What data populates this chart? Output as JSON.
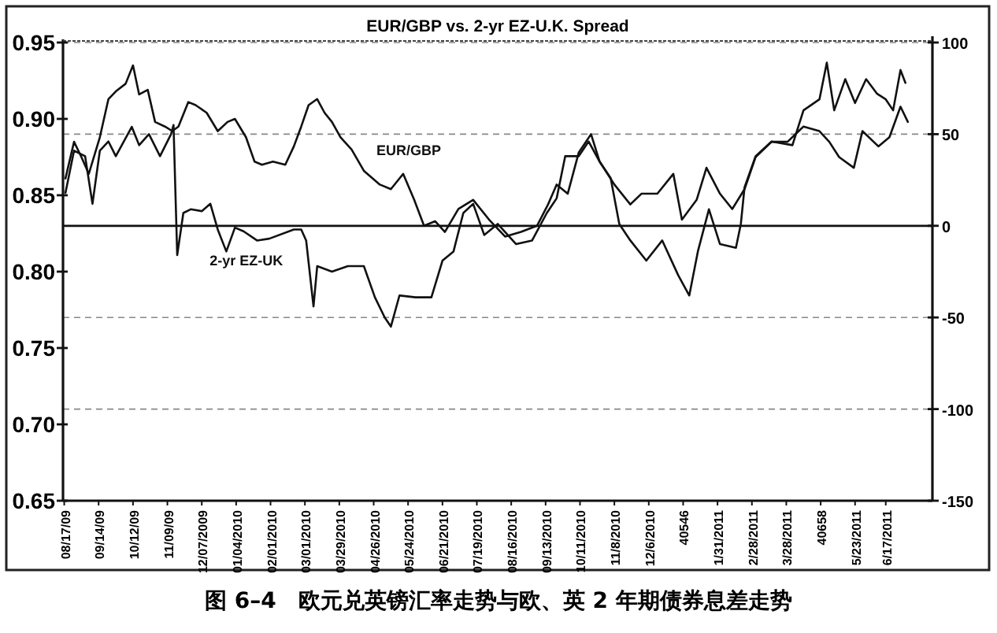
{
  "chart_data": {
    "type": "line",
    "title": "EUR/GBP vs. 2-yr EZ-U.K. Spread",
    "annotations": [
      "图 6–4　欧元兑英镑汇率走势与欧、英 2 年期债券息差走势"
    ],
    "xlim": [
      40041,
      40749
    ],
    "xticks": [
      {
        "value": 40042,
        "label": "08/17/09"
      },
      {
        "value": 40070,
        "label": "09/14/09"
      },
      {
        "value": 40098,
        "label": "10/12/09"
      },
      {
        "value": 40126,
        "label": "11/09/09"
      },
      {
        "value": 40154,
        "label": "12/07/2009"
      },
      {
        "value": 40182,
        "label": "01/04/2010"
      },
      {
        "value": 40210,
        "label": "02/01/2010"
      },
      {
        "value": 40238,
        "label": "03/01/2010"
      },
      {
        "value": 40266,
        "label": "03/29/2010"
      },
      {
        "value": 40294,
        "label": "04/26/2010"
      },
      {
        "value": 40322,
        "label": "05/24/2010"
      },
      {
        "value": 40350,
        "label": "06/21/2010"
      },
      {
        "value": 40378,
        "label": "07/19/2010"
      },
      {
        "value": 40406,
        "label": "08/16/2010"
      },
      {
        "value": 40434,
        "label": "09/13/2010"
      },
      {
        "value": 40462,
        "label": "10/11/2010"
      },
      {
        "value": 40490,
        "label": "11/8/2010"
      },
      {
        "value": 40518,
        "label": "12/6/2010"
      },
      40546,
      {
        "value": 40574,
        "label": "1/31/2011"
      },
      {
        "value": 40602,
        "label": "2/28/2011"
      },
      {
        "value": 40630,
        "label": "3/28/2011"
      },
      40658,
      {
        "value": 40686,
        "label": "5/23/2011"
      },
      {
        "value": 40711,
        "label": "6/17/2011"
      }
    ],
    "ylim": [
      0.65,
      0.95
    ],
    "yticks": [
      0.65,
      {
        "value": 0.7,
        "label": "0.70"
      },
      0.75,
      {
        "value": 0.8,
        "label": "0.80"
      },
      0.85,
      {
        "value": 0.9,
        "label": "0.90"
      },
      0.95
    ],
    "y2lim": [
      -150,
      100
    ],
    "y2ticks": [
      -150,
      -100,
      -50,
      0,
      50,
      100
    ],
    "grid": "y",
    "ref_lines": [
      {
        "axis": "y2",
        "value": 0
      }
    ],
    "series": [
      {
        "name": "EUR/GBP",
        "color": "#111111",
        "x": [
          40043,
          40050,
          40056,
          40062,
          40071,
          40078,
          40084,
          40092,
          40098,
          40103,
          40110,
          40116,
          40124,
          40130,
          40135,
          40143,
          40149,
          40158,
          40167,
          40175,
          40181,
          40190,
          40197,
          40203,
          40212,
          40222,
          40229,
          40235,
          40241,
          40248,
          40254,
          40260,
          40267,
          40276,
          40286,
          40299,
          40308,
          40318,
          40327,
          40335,
          40344,
          40352,
          40363,
          40375,
          40388,
          40401,
          40414,
          40427,
          40436,
          40443,
          40452,
          40461,
          40471,
          40478,
          40490,
          40503,
          40512,
          40525,
          40538,
          40545,
          40557,
          40565,
          40576,
          40586,
          40596,
          40605,
          40618,
          40631,
          40644,
          40657,
          40665,
          40673,
          40685,
          40692,
          40705,
          40714,
          40723,
          40729
        ],
        "values": [
          0.861,
          0.885,
          0.875,
          0.864,
          0.888,
          0.913,
          0.918,
          0.923,
          0.935,
          0.916,
          0.919,
          0.898,
          0.895,
          0.892,
          0.895,
          0.911,
          0.909,
          0.904,
          0.892,
          0.898,
          0.9,
          0.888,
          0.872,
          0.87,
          0.872,
          0.87,
          0.882,
          0.895,
          0.909,
          0.913,
          0.904,
          0.898,
          0.888,
          0.88,
          0.866,
          0.857,
          0.854,
          0.864,
          0.847,
          0.83,
          0.833,
          0.826,
          0.841,
          0.847,
          0.834,
          0.823,
          0.826,
          0.83,
          0.844,
          0.857,
          0.851,
          0.878,
          0.89,
          0.872,
          0.857,
          0.844,
          0.851,
          0.851,
          0.864,
          0.834,
          0.847,
          0.868,
          0.851,
          0.841,
          0.854,
          0.875,
          0.885,
          0.885,
          0.895,
          0.892,
          0.885,
          0.875,
          0.868,
          0.892,
          0.882,
          0.888,
          0.908,
          0.898
        ]
      },
      {
        "name": "2-yr EZ-UK",
        "color": "#111111",
        "axis": "y2",
        "x": [
          40043,
          40050,
          40059,
          40065,
          40071,
          40078,
          40084,
          40097,
          40103,
          40111,
          40120,
          40129,
          40131,
          40134,
          40139,
          40145,
          40154,
          40161,
          40167,
          40174,
          40181,
          40188,
          40199,
          40209,
          40229,
          40235,
          40239,
          40245,
          40248,
          40260,
          40273,
          40286,
          40295,
          40303,
          40308,
          40315,
          40328,
          40341,
          40350,
          40359,
          40367,
          40375,
          40384,
          40395,
          40410,
          40423,
          40435,
          40443,
          40450,
          40461,
          40469,
          40478,
          40487,
          40494,
          40503,
          40516,
          40529,
          40542,
          40551,
          40558,
          40567,
          40576,
          40589,
          40593,
          40596,
          40605,
          40618,
          40635,
          40644,
          40657,
          40663,
          40669,
          40678,
          40686,
          40695,
          40704,
          40711,
          40717,
          40723,
          40727
        ],
        "values": [
          18,
          41,
          38,
          12,
          41,
          46,
          38,
          54,
          44,
          50,
          38,
          50,
          55,
          -16,
          7,
          9,
          8,
          12,
          -2,
          -14,
          -1,
          -3,
          -8,
          -7,
          -2,
          -2,
          -8,
          -44,
          -22,
          -25,
          -22,
          -22,
          -39,
          -50,
          -55,
          -38,
          -39,
          -39,
          -19,
          -14,
          7,
          12,
          -5,
          1,
          -10,
          -8,
          7,
          15,
          38,
          38,
          46,
          35,
          26,
          1,
          -8,
          -19,
          -8,
          -27,
          -38,
          -14,
          9,
          -10,
          -12,
          1,
          21,
          38,
          46,
          44,
          63,
          69,
          89,
          63,
          80,
          67,
          80,
          72,
          69,
          63,
          85,
          78
        ]
      }
    ]
  }
}
